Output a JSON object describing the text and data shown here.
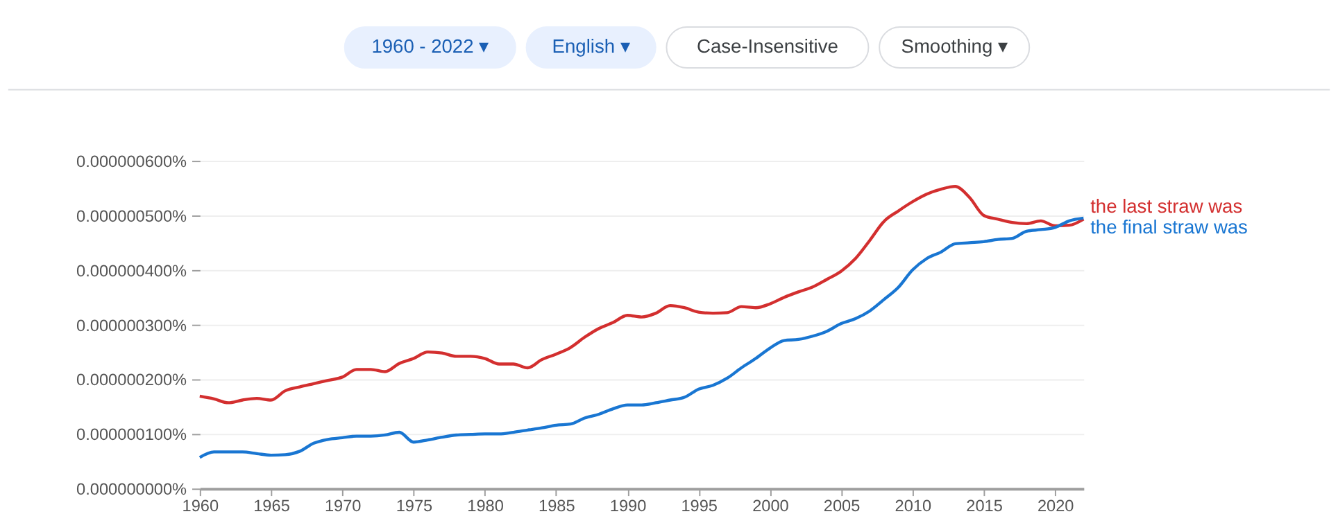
{
  "chart_data": {
    "type": "line",
    "annotations": [
      "1960 - 2022 ▾",
      "English ▾",
      "Case-Insensitive",
      "Smoothing ▾"
    ],
    "x": [
      1960,
      1961,
      1962,
      1963,
      1964,
      1965,
      1966,
      1967,
      1968,
      1969,
      1970,
      1971,
      1972,
      1973,
      1974,
      1975,
      1976,
      1977,
      1978,
      1979,
      1980,
      1981,
      1982,
      1983,
      1984,
      1985,
      1986,
      1987,
      1988,
      1989,
      1990,
      1991,
      1992,
      1993,
      1994,
      1995,
      1996,
      1997,
      1998,
      1999,
      2000,
      2001,
      2002,
      2003,
      2004,
      2005,
      2006,
      2007,
      2008,
      2009,
      2010,
      2011,
      2012,
      2013,
      2014,
      2015,
      2016,
      2017,
      2018,
      2019,
      2020,
      2021,
      2022
    ],
    "series": [
      {
        "name": "the last straw was",
        "color": "#d32f2f",
        "values": [
          1.69e-07,
          1.64e-07,
          1.57e-07,
          1.62e-07,
          1.65e-07,
          1.62e-07,
          1.79e-07,
          1.86e-07,
          1.92e-07,
          1.98e-07,
          2.04e-07,
          2.18e-07,
          2.18e-07,
          2.14e-07,
          2.29e-07,
          2.38e-07,
          2.5e-07,
          2.48e-07,
          2.42e-07,
          2.42e-07,
          2.38e-07,
          2.28e-07,
          2.28e-07,
          2.21e-07,
          2.36e-07,
          2.46e-07,
          2.58e-07,
          2.77e-07,
          2.93e-07,
          3.04e-07,
          3.17e-07,
          3.14e-07,
          3.21e-07,
          3.35e-07,
          3.31e-07,
          3.23e-07,
          3.21e-07,
          3.22e-07,
          3.33e-07,
          3.31e-07,
          3.38e-07,
          3.5e-07,
          3.6e-07,
          3.69e-07,
          3.83e-07,
          3.98e-07,
          4.21e-07,
          4.54e-07,
          4.89e-07,
          5.08e-07,
          5.25e-07,
          5.39e-07,
          5.48e-07,
          5.53e-07,
          5.33e-07,
          5e-07,
          4.93e-07,
          4.87e-07,
          4.85e-07,
          4.9e-07,
          4.81e-07,
          4.82e-07,
          4.93e-07
        ]
      },
      {
        "name": "the final straw was",
        "color": "#1976d2",
        "values": [
          5.7e-08,
          6.7e-08,
          6.7e-08,
          6.7e-08,
          6.4e-08,
          6.1e-08,
          6.2e-08,
          6.8e-08,
          8.3e-08,
          9e-08,
          9.3e-08,
          9.6e-08,
          9.6e-08,
          9.8e-08,
          1.03e-07,
          8.5e-08,
          8.9e-08,
          9.4e-08,
          9.8e-08,
          9.9e-08,
          1e-07,
          1e-07,
          1.03e-07,
          1.07e-07,
          1.11e-07,
          1.16e-07,
          1.18e-07,
          1.29e-07,
          1.36e-07,
          1.46e-07,
          1.53e-07,
          1.53e-07,
          1.57e-07,
          1.62e-07,
          1.67e-07,
          1.82e-07,
          1.89e-07,
          2.02e-07,
          2.21e-07,
          2.38e-07,
          2.57e-07,
          2.71e-07,
          2.73e-07,
          2.79e-07,
          2.88e-07,
          3.02e-07,
          3.11e-07,
          3.25e-07,
          3.46e-07,
          3.68e-07,
          4e-07,
          4.21e-07,
          4.33e-07,
          4.48e-07,
          4.5e-07,
          4.52e-07,
          4.56e-07,
          4.58e-07,
          4.71e-07,
          4.74e-07,
          4.78e-07,
          4.9e-07,
          4.95e-07
        ]
      }
    ],
    "xlim": [
      1960,
      2022
    ],
    "xticks": [
      1960,
      1965,
      1970,
      1975,
      1980,
      1985,
      1990,
      1995,
      2000,
      2005,
      2010,
      2015,
      2020
    ],
    "ylim": [
      0,
      6e-07
    ],
    "yticks": [
      {
        "value": 0,
        "label": "0.000000000%"
      },
      {
        "value": 1e-07,
        "label": "0.000000100%"
      },
      {
        "value": 2e-07,
        "label": "0.000000200%"
      },
      {
        "value": 3e-07,
        "label": "0.000000300%"
      },
      {
        "value": 4e-07,
        "label": "0.000000400%"
      },
      {
        "value": 5e-07,
        "label": "0.000000500%"
      },
      {
        "value": 6e-07,
        "label": "0.000000600%"
      }
    ],
    "grid": "y",
    "legend": false,
    "line_style": "solid",
    "marker": "none"
  }
}
